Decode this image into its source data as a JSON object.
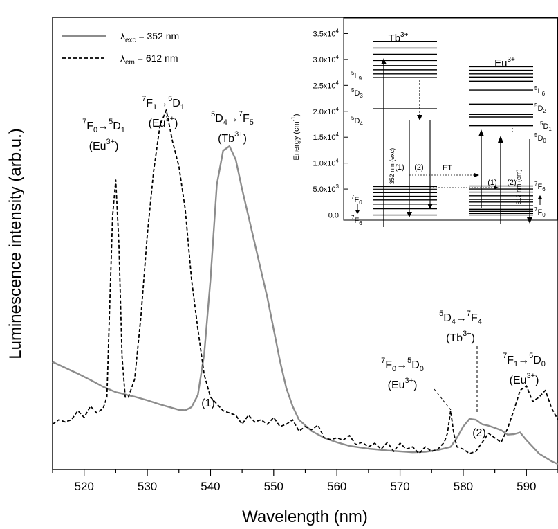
{
  "chart_data": {
    "type": "line",
    "xlabel": "Wavelength (nm)",
    "ylabel": "Luminescence intensity (arb.u.)",
    "xlim": [
      515,
      595
    ],
    "ylim": [
      0,
      1.0
    ],
    "y_tick_labels_shown": false,
    "x_ticks": [
      520,
      530,
      540,
      550,
      560,
      570,
      580,
      590
    ],
    "legend_position": "top-left",
    "series": [
      {
        "legend": "λexc = 352 nm",
        "legend_main": "λ",
        "legend_sub": "exc",
        "legend_rest": " = 352 nm",
        "style": "solid",
        "color": "#8c8c8c",
        "x": [
          515,
          517,
          519,
          521,
          523,
          524,
          525,
          526,
          527,
          528,
          530,
          532,
          534,
          535,
          536,
          537,
          538,
          539,
          540,
          541,
          542,
          543,
          544,
          545,
          546,
          547,
          548,
          549,
          550,
          551,
          552,
          553,
          554,
          556,
          558,
          560,
          562,
          565,
          568,
          570,
          572,
          574,
          576,
          578,
          579,
          580,
          581,
          582,
          583,
          584,
          585,
          586,
          587,
          588,
          589,
          590,
          592,
          594,
          595
        ],
        "y": [
          0.238,
          0.225,
          0.212,
          0.198,
          0.183,
          0.177,
          0.171,
          0.168,
          0.164,
          0.161,
          0.153,
          0.144,
          0.136,
          0.132,
          0.131,
          0.138,
          0.165,
          0.255,
          0.42,
          0.63,
          0.705,
          0.715,
          0.685,
          0.62,
          0.56,
          0.5,
          0.44,
          0.38,
          0.31,
          0.24,
          0.18,
          0.14,
          0.11,
          0.085,
          0.07,
          0.06,
          0.052,
          0.046,
          0.042,
          0.04,
          0.038,
          0.039,
          0.043,
          0.05,
          0.07,
          0.095,
          0.112,
          0.11,
          0.1,
          0.097,
          0.092,
          0.087,
          0.077,
          0.078,
          0.082,
          0.065,
          0.035,
          0.018,
          0.012
        ]
      },
      {
        "legend": "λem = 612 nm",
        "legend_main": "λ",
        "legend_sub": "em",
        "legend_rest": " = 612 nm",
        "style": "dashed",
        "color": "#000000",
        "x": [
          515,
          516,
          517,
          518,
          519,
          520,
          521,
          522,
          523,
          523.6,
          524,
          524.5,
          525,
          525.5,
          526,
          526.5,
          527,
          528,
          529,
          530,
          531,
          532,
          533,
          534,
          535,
          536,
          537,
          538,
          539,
          540,
          541,
          542,
          543,
          544,
          545,
          546,
          547,
          548,
          549,
          550,
          551,
          552,
          553,
          554,
          555,
          556,
          557,
          558,
          559,
          560,
          561,
          562,
          563,
          564,
          565,
          566,
          567,
          568,
          569,
          570,
          571,
          572,
          573,
          574,
          575,
          576,
          577,
          577.5,
          578,
          578.5,
          579,
          580,
          581,
          582,
          583,
          584,
          585,
          586,
          587,
          588,
          589,
          590,
          591,
          592,
          593,
          594,
          595
        ],
        "y": [
          0.1,
          0.11,
          0.105,
          0.11,
          0.13,
          0.115,
          0.14,
          0.125,
          0.135,
          0.16,
          0.34,
          0.56,
          0.64,
          0.5,
          0.25,
          0.16,
          0.16,
          0.2,
          0.34,
          0.52,
          0.66,
          0.76,
          0.795,
          0.725,
          0.67,
          0.575,
          0.42,
          0.31,
          0.21,
          0.16,
          0.145,
          0.13,
          0.125,
          0.12,
          0.1,
          0.12,
          0.105,
          0.11,
          0.1,
          0.115,
          0.095,
          0.1,
          0.11,
          0.085,
          0.095,
          0.088,
          0.098,
          0.07,
          0.066,
          0.07,
          0.065,
          0.075,
          0.055,
          0.06,
          0.05,
          0.058,
          0.045,
          0.06,
          0.04,
          0.058,
          0.045,
          0.05,
          0.035,
          0.05,
          0.04,
          0.045,
          0.06,
          0.08,
          0.13,
          0.08,
          0.05,
          0.045,
          0.035,
          0.04,
          0.06,
          0.08,
          0.07,
          0.06,
          0.09,
          0.13,
          0.175,
          0.185,
          0.15,
          0.16,
          0.175,
          0.135,
          0.11
        ]
      }
    ],
    "annotations": {
      "a1": {
        "t_sup1": "7",
        "t_a": "F",
        "t_sub1": "0",
        "t_arrow": "→",
        "t_sup2": "5",
        "t_b": "D",
        "t_sub2": "1",
        "ion_a": "(Eu",
        "ion_sup": "3+",
        "ion_b": ")"
      },
      "a2": {
        "t_sup1": "7",
        "t_a": "F",
        "t_sub1": "1",
        "t_arrow": "→",
        "t_sup2": "5",
        "t_b": "D",
        "t_sub2": "1",
        "ion_a": "(Eu",
        "ion_sup": "3+",
        "ion_b": ")"
      },
      "a3": {
        "t_sup1": "5",
        "t_a": "D",
        "t_sub1": "4",
        "t_arrow": "→",
        "t_sup2": "7",
        "t_b": "F",
        "t_sub2": "5",
        "ion_a": "(Tb",
        "ion_sup": "3+",
        "ion_b": ")"
      },
      "a4": {
        "t_sup1": "5",
        "t_a": "D",
        "t_sub1": "4",
        "t_arrow": "→",
        "t_sup2": "7",
        "t_b": "F",
        "t_sub2": "4",
        "ion_a": "(Tb",
        "ion_sup": "3+",
        "ion_b": ")"
      },
      "a5": {
        "t_sup1": "7",
        "t_a": "F",
        "t_sub1": "0",
        "t_arrow": "→",
        "t_sup2": "5",
        "t_b": "D",
        "t_sub2": "0",
        "ion_a": "(Eu",
        "ion_sup": "3+",
        "ion_b": ")"
      },
      "a6": {
        "t_sup1": "7",
        "t_a": "F",
        "t_sub1": "1",
        "t_arrow": "→",
        "t_sup2": "5",
        "t_b": "D",
        "t_sub2": "0",
        "ion_a": "(Eu",
        "ion_sup": "3+",
        "ion_b": ")"
      },
      "label_1": "(1)",
      "label_2": "(2)"
    },
    "inset": {
      "ylabel_main": "Energy (cm",
      "ylabel_sup": "-1",
      "ylabel_end": ")",
      "y_ticks": [
        {
          "value": 0,
          "label": "0.0"
        },
        {
          "value": 5000,
          "label": "5.0x10",
          "exp": "3"
        },
        {
          "value": 10000,
          "label": "1.0x10",
          "exp": "4"
        },
        {
          "value": 15000,
          "label": "1.5x10",
          "exp": "4"
        },
        {
          "value": 20000,
          "label": "2.0x10",
          "exp": "4"
        },
        {
          "value": 25000,
          "label": "2.5x10",
          "exp": "4"
        },
        {
          "value": 30000,
          "label": "3.0x10",
          "exp": "4"
        },
        {
          "value": 35000,
          "label": "3.5x10",
          "exp": "4"
        }
      ],
      "ylim": [
        -1000,
        38000
      ],
      "tb_title": "Tb",
      "tb_title_sup": "3+",
      "eu_title": "Eu",
      "eu_title_sup": "3+",
      "tb_levels": [
        0,
        1200,
        2100,
        2900,
        3600,
        4300,
        4900,
        5200,
        5500,
        20500,
        26500,
        27200,
        28000,
        28800,
        29800,
        31000,
        32200,
        33500
      ],
      "eu_levels": [
        0,
        300,
        700,
        1100,
        1800,
        2500,
        3000,
        3700,
        4400,
        5000,
        5600,
        17200,
        18900,
        19400,
        21400,
        24100,
        25800,
        26600,
        27200,
        27900,
        28600
      ],
      "tb_labels": {
        "l5l9_sup": "5",
        "l5l9_a": "L",
        "l5l9_sub": "9",
        "l5d3_sup": "5",
        "l5d3_a": "D",
        "l5d3_sub": "3",
        "l5d4_sup": "5",
        "l5d4_a": "D",
        "l5d4_sub": "4",
        "l7f0_sup": "7",
        "l7f0_a": "F",
        "l7f0_sub": "0",
        "l7f6_sup": "7",
        "l7f6_a": "F",
        "l7f6_sub": "6"
      },
      "eu_labels": {
        "l5l6_sup": "5",
        "l5l6_a": "L",
        "l5l6_sub": "6",
        "l5d2_sup": "5",
        "l5d2_a": "D",
        "l5d2_sub": "2",
        "l5d1_sup": "5",
        "l5d1_a": "D",
        "l5d1_sub": "1",
        "l5d0_sup": "5",
        "l5d0_a": "D",
        "l5d0_sub": "0",
        "l7f6_sup": "7",
        "l7f6_a": "F",
        "l7f6_sub": "6",
        "l7f0_sup": "7",
        "l7f0_a": "F",
        "l7f0_sub": "0"
      },
      "exc_label": "352 nm (exc)",
      "em_label": "612 nm (em)",
      "et_label": "ET",
      "lbl_1": "(1)",
      "lbl_2": "(2)"
    }
  }
}
